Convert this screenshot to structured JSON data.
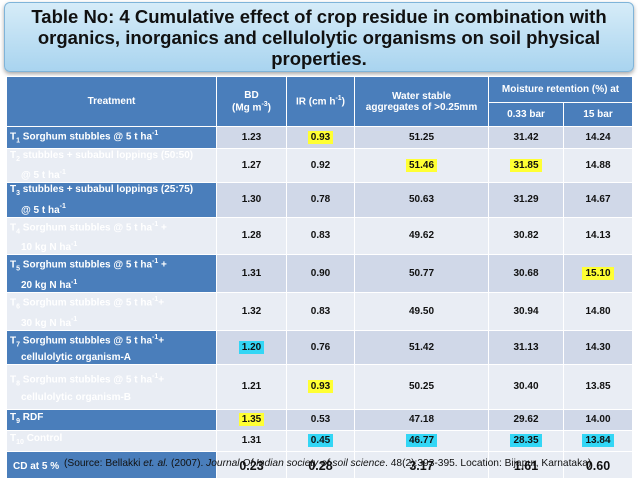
{
  "title": "Table No: 4 Cumulative effect of crop residue in combination with organics, inorganics and cellulolytic organisms on soil physical properties.",
  "headers": {
    "treatment": "Treatment",
    "bd_line1": "BD",
    "bd_line2": "(Mg m",
    "bd_sup": "-3",
    "bd_close": ")",
    "ir": "IR (cm h",
    "ir_sup": "-1",
    "ir_close": ")",
    "wsa_line1": "Water stable",
    "wsa_line2": "aggregates of >0.25mm",
    "moisture": "Moisture retention (%) at",
    "bar033": "0.33 bar",
    "bar15": "15 bar"
  },
  "rows": [
    {
      "t": "T",
      "n": "1",
      "l1": "Sorghum stubbles @ 5 t ha",
      "s1": "-1",
      "l1b": "",
      "l2": "",
      "s2": "",
      "bd": "1.23",
      "ir": "0.93",
      "wsa": "51.25",
      "m033": "31.42",
      "m15": "14.24",
      "hl": {
        "ir": "y"
      }
    },
    {
      "t": "T",
      "n": "2",
      "l1": "stubbles + subabul loppings (50:50)",
      "s1": "",
      "l1b": "",
      "l2": "@ 5 t ha",
      "s2": "-1",
      "bd": "1.27",
      "ir": "0.92",
      "wsa": "51.46",
      "m033": "31.85",
      "m15": "14.88",
      "hl": {
        "wsa": "y",
        "m033": "y"
      }
    },
    {
      "t": "T",
      "n": "3",
      "l1": "stubbles + subabul loppings (25:75)",
      "s1": "",
      "l1b": "",
      "l2": "@ 5 t ha",
      "s2": "-1",
      "bd": "1.30",
      "ir": "0.78",
      "wsa": "50.63",
      "m033": "31.29",
      "m15": "14.67",
      "hl": {}
    },
    {
      "t": "T",
      "n": "4",
      "l1": "Sorghum stubbles @ 5 t ha",
      "s1": "-1",
      "l1b": " +",
      "l2": "10 kg N ha",
      "s2": "-1",
      "bd": "1.28",
      "ir": "0.83",
      "wsa": "49.62",
      "m033": "30.82",
      "m15": "14.13",
      "hl": {}
    },
    {
      "t": "T",
      "n": "5",
      "l1": "Sorghum stubbles @ 5 t ha",
      "s1": "-1",
      "l1b": " +",
      "l2": "20 kg N ha",
      "s2": "-1",
      "bd": "1.31",
      "ir": "0.90",
      "wsa": "50.77",
      "m033": "30.68",
      "m15": "15.10",
      "hl": {
        "m15": "y"
      }
    },
    {
      "t": "T",
      "n": "6",
      "l1": "Sorghum stubbles @ 5 t ha",
      "s1": "-1",
      "l1b": "+",
      "l2": "30 kg N ha",
      "s2": "-1",
      "bd": "1.32",
      "ir": "0.83",
      "wsa": "49.50",
      "m033": "30.94",
      "m15": "14.80",
      "hl": {}
    },
    {
      "t": "T",
      "n": "7",
      "l1": "Sorghum stubbles @ 5 t ha",
      "s1": "-1",
      "l1b": "+",
      "l2": "cellulolytic organism-A",
      "s2": "",
      "bd": "1.20",
      "ir": "0.76",
      "wsa": "51.42",
      "m033": "31.13",
      "m15": "14.30",
      "hl": {
        "bd": "c"
      }
    },
    {
      "t": "T",
      "n": "8",
      "l1": "Sorghum stubbles @ 5 t ha",
      "s1": "-1",
      "l1b": "+",
      "l2": "cellulolytic organism-B",
      "s2": "",
      "bd": "1.21",
      "ir": "0.93",
      "wsa": "50.25",
      "m033": "30.40",
      "m15": "13.85",
      "hl": {
        "ir": "y"
      }
    },
    {
      "t": "T",
      "n": "9",
      "l1": "RDF",
      "s1": "",
      "l1b": "",
      "l2": "",
      "s2": "",
      "bd": "1.35",
      "ir": "0.53",
      "wsa": "47.18",
      "m033": "29.62",
      "m15": "14.00",
      "hl": {
        "bd": "y"
      }
    },
    {
      "t": "T",
      "n": "10",
      "l1": "Control",
      "s1": "",
      "l1b": "",
      "l2": "",
      "s2": "",
      "bd": "1.31",
      "ir": "0.45",
      "wsa": "46.77",
      "m033": "28.35",
      "m15": "13.84",
      "hl": {
        "ir": "c",
        "wsa": "c",
        "m033": "c",
        "m15": "c"
      }
    }
  ],
  "cd": {
    "label": "CD at 5 %",
    "bd": "0.23",
    "ir": "0.28",
    "wsa": "3.17",
    "m033": "1.61",
    "m15": "0.60"
  },
  "source": {
    "prefix": "(Source: Bellakki ",
    "etal": "et. al.",
    "mid": " (2007). ",
    "journal": "Journal  Of Indian society of soil science",
    "suffix": ". 48(2):393-395. Location: Bijapur, Karnataka)"
  },
  "colors": {
    "header_blue": "#4a7ebb",
    "row_light": "#d0d8e8",
    "row_lighter": "#e9edf4",
    "highlight_yellow": "#ffff33",
    "highlight_cyan": "#33d6f5"
  }
}
